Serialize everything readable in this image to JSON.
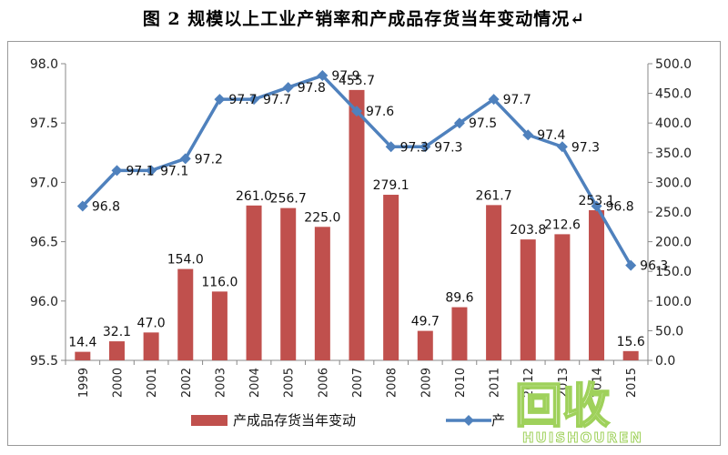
{
  "chart_data": {
    "type": "bar+line",
    "title": "图 2 规模以上工业产销率和产成品存货当年变动情况↵",
    "categories": [
      "1999",
      "2000",
      "2001",
      "2002",
      "2003",
      "2004",
      "2005",
      "2006",
      "2007",
      "2008",
      "2009",
      "2010",
      "2011",
      "2012",
      "2013",
      "2014",
      "2015"
    ],
    "series": [
      {
        "name": "产成品存货当年变动",
        "type": "bar",
        "axis": "right",
        "color": "#c0504d",
        "values": [
          14.4,
          32.1,
          47.0,
          154.0,
          116.0,
          261.0,
          256.7,
          225.0,
          455.7,
          279.1,
          49.7,
          89.6,
          261.7,
          203.8,
          212.6,
          253.1,
          15.6
        ],
        "labels": [
          "14.4",
          "32.1",
          "47.0",
          "154.0",
          "116.0",
          "261.0",
          "256.7",
          "225.0",
          "455.7",
          "279.1",
          "49.7",
          "89.6",
          "261.7",
          "203.8",
          "212.6",
          "253.1",
          "15.6"
        ]
      },
      {
        "name": "产销率",
        "type": "line",
        "axis": "left",
        "color": "#4f81bd",
        "values": [
          96.8,
          97.1,
          97.1,
          97.2,
          97.7,
          97.7,
          97.8,
          97.9,
          97.6,
          97.3,
          97.3,
          97.5,
          97.7,
          97.4,
          97.3,
          96.8,
          96.3
        ],
        "labels": [
          "96.8",
          "97.1",
          "97.1",
          "97.2",
          "97.7",
          "97.7",
          "97.8",
          "97.9",
          "97.6",
          "97.3",
          "97.3",
          "97.5",
          "97.7",
          "97.4",
          "97.3",
          "96.8",
          "96.3"
        ]
      }
    ],
    "y_left": {
      "min": 95.5,
      "max": 98.0,
      "ticks": [
        "95.5",
        "96.0",
        "96.5",
        "97.0",
        "97.5",
        "98.0"
      ]
    },
    "y_right": {
      "min": 0,
      "max": 500,
      "ticks": [
        "0.0",
        "50.0",
        "100.0",
        "150.0",
        "200.0",
        "250.0",
        "300.0",
        "350.0",
        "400.0",
        "450.0",
        "500.0"
      ]
    },
    "grid": false,
    "legend_position": "bottom",
    "legend": [
      {
        "label": "产成品存货当年变动",
        "type": "bar"
      },
      {
        "label": "产",
        "type": "line"
      }
    ]
  },
  "colors": {
    "bar": "#c0504d",
    "line": "#4f81bd",
    "axis": "#888888"
  },
  "watermark": {
    "logo": "回收",
    "sub": "HUISHOUREN"
  }
}
